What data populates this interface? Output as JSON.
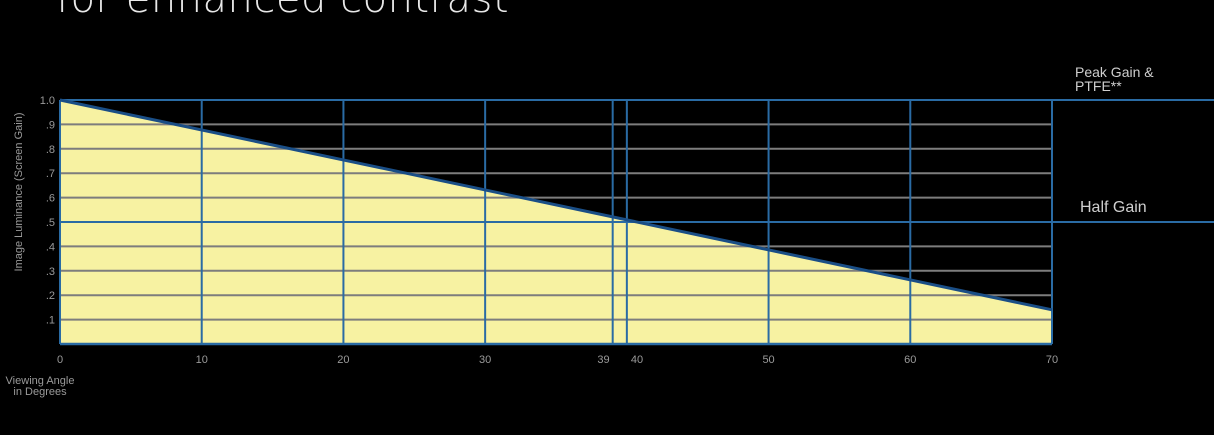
{
  "heading": "for enhanced contrast",
  "chart_data": {
    "type": "area",
    "title": "",
    "xlabel_lines": [
      "Viewing Angle",
      "in Degrees"
    ],
    "ylabel": "Image Luminance (Screen Gain)",
    "xlim": [
      0,
      70
    ],
    "ylim": [
      0,
      1.0
    ],
    "x_ticks": [
      {
        "value": 0,
        "label": "0"
      },
      {
        "value": 10,
        "label": "10"
      },
      {
        "value": 20,
        "label": "20"
      },
      {
        "value": 30,
        "label": "30"
      },
      {
        "value": 39,
        "label": "39"
      },
      {
        "value": 40,
        "label": "40"
      },
      {
        "value": 50,
        "label": "50"
      },
      {
        "value": 60,
        "label": "60"
      },
      {
        "value": 70,
        "label": "70"
      }
    ],
    "y_ticks": [
      {
        "value": 0.1,
        "label": ".1"
      },
      {
        "value": 0.2,
        "label": ".2"
      },
      {
        "value": 0.3,
        "label": ".3"
      },
      {
        "value": 0.4,
        "label": ".4"
      },
      {
        "value": 0.5,
        "label": ".5"
      },
      {
        "value": 0.6,
        "label": ".6"
      },
      {
        "value": 0.7,
        "label": ".7"
      },
      {
        "value": 0.8,
        "label": ".8"
      },
      {
        "value": 0.9,
        "label": ".9"
      },
      {
        "value": 1.0,
        "label": "1.0"
      }
    ],
    "series": [
      {
        "x": [
          0,
          70
        ],
        "y": [
          1.0,
          0.14
        ]
      }
    ],
    "reference_lines": [
      {
        "value": 1.0,
        "label_lines": [
          "Peak Gain &",
          "PTFE**"
        ]
      },
      {
        "value": 0.5,
        "label_lines": [
          "Half Gain"
        ]
      }
    ],
    "grid": true,
    "colors": {
      "fill": "#f7f2a2",
      "line": "#1a4e86",
      "vgrid": "#2a6ba4",
      "hgrid": "#7d7d7d",
      "text": "#9a9a9a",
      "label": "#cfcfcf",
      "background": "#000000"
    }
  }
}
